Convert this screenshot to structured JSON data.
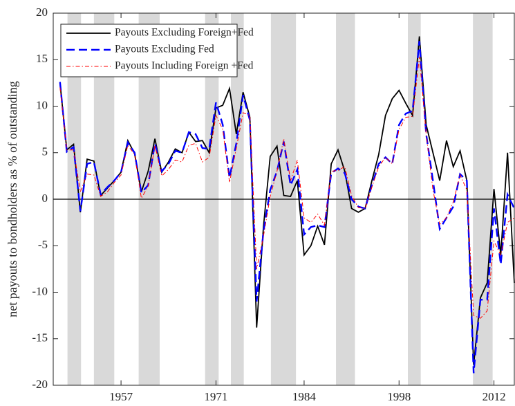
{
  "chart_data": {
    "type": "line",
    "y_label": "net payouts to bondholders  as % of outstanding",
    "x": [
      1948,
      1949,
      1950,
      1951,
      1952,
      1953,
      1954,
      1955,
      1956,
      1957,
      1958,
      1959,
      1960,
      1961,
      1962,
      1963,
      1964,
      1965,
      1966,
      1967,
      1968,
      1969,
      1970,
      1971,
      1972,
      1973,
      1974,
      1975,
      1976,
      1977,
      1978,
      1979,
      1980,
      1981,
      1982,
      1983,
      1984,
      1985,
      1986,
      1987,
      1988,
      1989,
      1990,
      1991,
      1992,
      1993,
      1994,
      1995,
      1996,
      1997,
      1998,
      1999,
      2000,
      2001,
      2002,
      2003,
      2004,
      2005,
      2006,
      2007,
      2008,
      2009,
      2010,
      2011,
      2012,
      2013,
      2014,
      2015
    ],
    "series": [
      {
        "name": "Payouts Excluding Foreign+Fed",
        "color": "#000000",
        "dash": "solid",
        "values": [
          12.5,
          5.3,
          5.9,
          -1.4,
          4.3,
          4.1,
          0.4,
          1.2,
          2.0,
          2.9,
          6.3,
          4.9,
          0.8,
          3.0,
          6.5,
          2.9,
          4.0,
          5.4,
          5.0,
          7.2,
          6.2,
          6.3,
          5.0,
          9.8,
          10.1,
          11.9,
          7.0,
          11.5,
          8.8,
          -13.8,
          -3.0,
          4.6,
          5.7,
          0.4,
          0.3,
          2.0,
          -6.0,
          -5.0,
          -2.9,
          -4.9,
          3.8,
          5.3,
          3.0,
          -1.0,
          -1.4,
          -1.0,
          2.0,
          4.8,
          9.0,
          10.8,
          11.7,
          10.3,
          9.0,
          17.5,
          8.0,
          5.0,
          2.0,
          6.3,
          3.5,
          5.2,
          2.0,
          -17.8,
          -10.6,
          -9.0,
          1.1,
          -6.0,
          5.0,
          -9.0
        ]
      },
      {
        "name": "Payouts Excluding Fed",
        "color": "#0000ff",
        "dash": "dashed",
        "values": [
          12.6,
          5.1,
          5.6,
          -1.3,
          3.8,
          4.0,
          0.5,
          1.3,
          2.0,
          2.9,
          6.1,
          5.0,
          0.7,
          1.5,
          6.0,
          3.0,
          3.8,
          5.2,
          5.0,
          7.2,
          7.0,
          5.5,
          5.4,
          10.4,
          8.0,
          2.3,
          6.0,
          11.2,
          8.5,
          -11.0,
          -3.5,
          1.0,
          3.0,
          6.2,
          1.5,
          3.2,
          -3.8,
          -3.0,
          -2.8,
          -3.0,
          2.8,
          3.3,
          2.8,
          0,
          -0.8,
          -1.0,
          1.5,
          3.8,
          4.5,
          3.8,
          8.0,
          9.2,
          9.5,
          17.0,
          7.0,
          2.0,
          -3.2,
          -2.0,
          -0.8,
          2.7,
          2.0,
          -18.7,
          -10.8,
          -10.8,
          -1.0,
          -7.0,
          0.5,
          -1.0
        ]
      },
      {
        "name": "Payouts Including Foreign +Fed",
        "color": "#ff0000",
        "dash": "dashdot",
        "values": [
          12.0,
          5.3,
          5.3,
          0.8,
          2.7,
          2.6,
          0.3,
          0.8,
          1.8,
          2.6,
          5.8,
          4.8,
          0.1,
          1.4,
          5.8,
          2.5,
          3.2,
          4.2,
          4.0,
          5.8,
          6.0,
          4.0,
          4.5,
          9.0,
          7.5,
          1.8,
          5.5,
          9.3,
          9.0,
          -7.5,
          -4.0,
          0.3,
          3.0,
          6.5,
          2.0,
          4.2,
          -2.0,
          -2.5,
          -1.6,
          -2.8,
          3.0,
          3.1,
          3.5,
          0.4,
          -0.9,
          -1.0,
          1.3,
          3.5,
          4.5,
          3.8,
          7.5,
          8.8,
          8.9,
          15.3,
          7.0,
          1.0,
          -2.7,
          -2.0,
          -0.3,
          2.6,
          1.0,
          -12.5,
          -12.8,
          -12.0,
          -4.5,
          -6.0,
          -2.5,
          -2.0
        ]
      }
    ],
    "shaded_periods": [
      [
        1949.1,
        1951.1
      ],
      [
        1953.0,
        1956.0
      ],
      [
        1959.6,
        1962.7
      ],
      [
        1969.4,
        1971.4
      ],
      [
        1973.2,
        1975.1
      ],
      [
        1979.1,
        1982.8
      ],
      [
        1988.7,
        1991.5
      ],
      [
        1999.3,
        2001.2
      ],
      [
        2008.9,
        2011.8
      ]
    ],
    "shade_color": "#d9d9d9",
    "zero_line": true,
    "xlim": [
      1947,
      2015
    ],
    "xticks": [
      1957,
      1971,
      1984,
      1998,
      2012
    ],
    "ylim": [
      -20,
      20
    ],
    "yticks": [
      -20,
      -15,
      -10,
      -5,
      0,
      5,
      10,
      15,
      20
    ],
    "legend": "upper left"
  }
}
